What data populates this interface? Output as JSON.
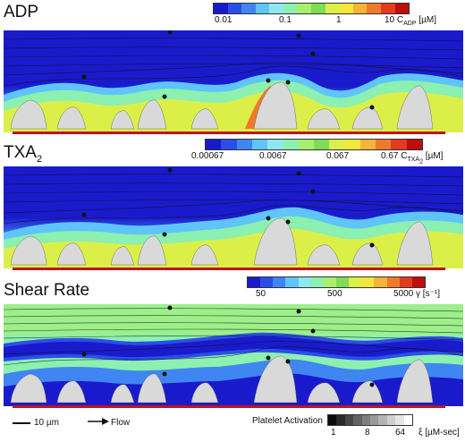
{
  "panels": {
    "adp": {
      "title": "ADP",
      "ticks": [
        "0.01",
        "0.1",
        "1",
        "10"
      ],
      "unit_main": "C",
      "unit_sub": "ADP",
      "unit_tail": "[µM]"
    },
    "txa2": {
      "title_main": "TXA",
      "title_sub": "2",
      "ticks": [
        "0.00067",
        "0.0067",
        "0.067",
        "0.67"
      ],
      "unit_main": "C",
      "unit_sub": "TXA",
      "unit_sub2": "2",
      "unit_tail": "[µM]"
    },
    "shear": {
      "title": "Shear Rate",
      "ticks": [
        "50",
        "500",
        "5000"
      ],
      "unit": "γ [s⁻¹]"
    }
  },
  "colormap": [
    "#1a1acd",
    "#2b4fe6",
    "#3f86f2",
    "#5fc4f7",
    "#8fe8f0",
    "#8cf0b0",
    "#a8ef70",
    "#7fdc55",
    "#dcef48",
    "#f5e63c",
    "#f5b435",
    "#f07a2c",
    "#e23c1f",
    "#c00c0c"
  ],
  "legend": {
    "scale_label": "10 µm",
    "flow_label": "Flow",
    "activation_label": "Platelet Activation",
    "activation_ticks": [
      "1",
      "8",
      "64"
    ],
    "activation_unit": "ξ [µM-sec]",
    "grays": [
      "#0c0c0c",
      "#2a2a2a",
      "#474747",
      "#636363",
      "#7f7f7f",
      "#9a9a9a",
      "#b5b5b5",
      "#cfcfcf",
      "#e6e6e6",
      "#ffffff"
    ]
  }
}
